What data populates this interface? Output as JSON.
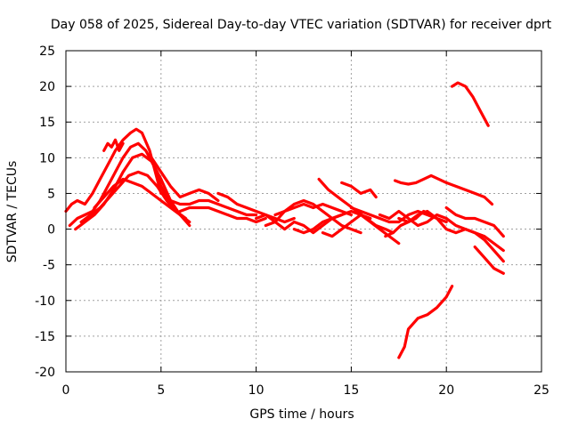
{
  "chart_data": {
    "type": "line",
    "title": "Day 058 of 2025, Sidereal Day-to-day VTEC variation (SDTVAR) for receiver dprt",
    "xlabel": "GPS time / hours",
    "ylabel": "SDTVAR / TECUs",
    "xlim": [
      0,
      25
    ],
    "ylim": [
      -20,
      25
    ],
    "xticks": [
      0,
      5,
      10,
      15,
      20,
      25
    ],
    "yticks": [
      -20,
      -15,
      -10,
      -5,
      0,
      5,
      10,
      15,
      20,
      25
    ],
    "grid": true,
    "color": "#ff0000",
    "series": [
      {
        "name": "s1",
        "x": [
          0,
          0.3,
          0.6,
          1.0,
          1.4,
          1.8,
          2.2,
          2.6,
          3.0,
          3.4,
          3.7,
          4.0,
          4.4,
          4.8,
          5.0
        ],
        "y": [
          2.5,
          3.5,
          4.0,
          3.5,
          5.0,
          7.0,
          9.0,
          11.0,
          12.5,
          13.5,
          14.0,
          13.5,
          11.0,
          7.0,
          5.0
        ]
      },
      {
        "name": "s2",
        "x": [
          0.2,
          0.6,
          1.0,
          1.4,
          1.8,
          2.2,
          2.6,
          3.0,
          3.4,
          3.8,
          4.2,
          4.6,
          5.0,
          5.4,
          6.0
        ],
        "y": [
          0.5,
          1.5,
          2.0,
          2.5,
          4.0,
          6.0,
          8.0,
          10.0,
          11.5,
          12.0,
          11.0,
          9.0,
          6.0,
          4.0,
          2.0
        ]
      },
      {
        "name": "s3",
        "x": [
          0.5,
          1.0,
          1.5,
          2.0,
          2.5,
          3.0,
          3.5,
          4.0,
          4.5,
          5.0,
          5.5,
          6.0,
          6.5
        ],
        "y": [
          0.0,
          1.0,
          2.0,
          3.5,
          5.5,
          8.0,
          10.0,
          10.5,
          9.5,
          7.0,
          4.0,
          2.0,
          0.5
        ]
      },
      {
        "name": "s4",
        "x": [
          0.8,
          1.3,
          1.8,
          2.3,
          2.8,
          3.3,
          3.8,
          4.3,
          4.8,
          5.3,
          5.8,
          6.3
        ],
        "y": [
          1.0,
          2.0,
          3.0,
          4.5,
          6.0,
          7.5,
          8.0,
          7.5,
          6.0,
          4.0,
          2.5,
          1.5
        ]
      },
      {
        "name": "s5",
        "x": [
          1.5,
          2.0,
          2.5,
          3.0,
          3.5,
          4.0,
          4.5,
          5.0,
          5.5,
          6.0,
          6.5
        ],
        "y": [
          3.0,
          4.5,
          6.0,
          7.0,
          6.5,
          6.0,
          5.0,
          4.0,
          3.0,
          2.0,
          1.0
        ]
      },
      {
        "name": "s6",
        "x": [
          2.0,
          2.2,
          2.4,
          2.6,
          2.8,
          3.0
        ],
        "y": [
          11.0,
          12.0,
          11.5,
          12.5,
          11.0,
          12.0
        ]
      },
      {
        "name": "s7",
        "x": [
          4.5,
          5.0,
          5.5,
          6.0,
          6.5,
          7.0,
          7.5,
          8.0
        ],
        "y": [
          10.0,
          8.0,
          6.0,
          4.5,
          5.0,
          5.5,
          5.0,
          4.0
        ]
      },
      {
        "name": "s8",
        "x": [
          5.5,
          6.0,
          6.5,
          7.0,
          7.5,
          8.0,
          8.5,
          9.0,
          9.5,
          10.0
        ],
        "y": [
          4.0,
          3.5,
          3.5,
          4.0,
          4.0,
          3.5,
          3.0,
          2.5,
          2.0,
          2.0
        ]
      },
      {
        "name": "s9",
        "x": [
          6.0,
          6.5,
          7.0,
          7.5,
          8.0,
          8.5,
          9.0,
          9.5,
          10.0,
          10.5
        ],
        "y": [
          2.5,
          3.0,
          3.0,
          3.0,
          2.5,
          2.0,
          1.5,
          1.5,
          1.0,
          1.5
        ]
      },
      {
        "name": "s10",
        "x": [
          8.0,
          8.5,
          9.0,
          9.5,
          10.0,
          10.5,
          11.0,
          11.5,
          12.0
        ],
        "y": [
          5.0,
          4.5,
          3.5,
          3.0,
          2.5,
          2.0,
          1.5,
          1.0,
          1.5
        ]
      },
      {
        "name": "s11",
        "x": [
          10.0,
          10.5,
          11.0,
          11.5,
          12.0,
          12.5,
          13.0,
          13.5,
          14.0,
          14.5,
          15.0
        ],
        "y": [
          1.5,
          2.0,
          1.0,
          2.5,
          3.0,
          3.5,
          3.0,
          3.5,
          3.0,
          2.5,
          2.0
        ]
      },
      {
        "name": "s12",
        "x": [
          10.5,
          11.0,
          11.5,
          12.0,
          12.5,
          13.0,
          13.5,
          14.0,
          14.5
        ],
        "y": [
          0.5,
          1.0,
          0.0,
          1.0,
          0.5,
          -0.5,
          0.5,
          1.5,
          2.0
        ]
      },
      {
        "name": "s13",
        "x": [
          11.0,
          11.5,
          12.0,
          12.5,
          13.0,
          13.5,
          14.0,
          14.5,
          15.0,
          15.5
        ],
        "y": [
          2.0,
          2.5,
          3.5,
          4.0,
          3.5,
          2.5,
          1.5,
          0.5,
          0.0,
          -0.5
        ]
      },
      {
        "name": "s14",
        "x": [
          12.0,
          12.5,
          13.0,
          13.5,
          14.0,
          14.5,
          15.0,
          15.5,
          16.0
        ],
        "y": [
          0.0,
          -0.5,
          0.0,
          1.0,
          1.5,
          2.0,
          2.5,
          2.0,
          1.5
        ]
      },
      {
        "name": "s15",
        "x": [
          13.5,
          14.0,
          14.5,
          15.0,
          15.5,
          16.0,
          16.5,
          17.0,
          17.5
        ],
        "y": [
          -0.5,
          -1.0,
          0.0,
          1.0,
          2.0,
          1.0,
          0.0,
          -1.0,
          -2.0
        ]
      },
      {
        "name": "s16",
        "x": [
          13.3,
          13.8,
          14.3,
          14.8,
          15.3,
          15.8,
          16.3,
          16.8,
          17.2
        ],
        "y": [
          7.0,
          5.5,
          4.5,
          3.5,
          2.5,
          1.5,
          0.5,
          0.0,
          -0.5
        ]
      },
      {
        "name": "s17",
        "x": [
          14.5,
          15.0,
          15.5,
          16.0,
          16.3
        ],
        "y": [
          6.5,
          6.0,
          5.0,
          5.5,
          4.5
        ]
      },
      {
        "name": "s18",
        "x": [
          15.0,
          15.5,
          16.0,
          16.5,
          17.0,
          17.5,
          18.0,
          18.5,
          19.0,
          19.5,
          20.0
        ],
        "y": [
          3.0,
          2.5,
          2.0,
          1.5,
          1.0,
          1.0,
          2.0,
          2.5,
          2.0,
          1.5,
          1.0
        ]
      },
      {
        "name": "s19",
        "x": [
          16.5,
          17.0,
          17.5,
          18.0,
          18.5,
          19.0,
          19.5,
          20.0
        ],
        "y": [
          2.0,
          1.5,
          2.5,
          1.5,
          0.5,
          1.0,
          2.0,
          1.5
        ]
      },
      {
        "name": "s20",
        "x": [
          16.8,
          17.2,
          17.6,
          18.0,
          18.4,
          18.8,
          19.2
        ],
        "y": [
          -1.0,
          -0.5,
          0.5,
          1.0,
          1.5,
          2.5,
          2.0
        ]
      },
      {
        "name": "s21",
        "x": [
          17.3,
          17.6,
          18.0,
          18.4,
          18.8,
          19.2,
          19.6,
          20.0,
          20.5,
          21.0,
          21.5,
          22.0,
          22.4
        ],
        "y": [
          6.8,
          6.5,
          6.3,
          6.5,
          7.0,
          7.5,
          7.0,
          6.5,
          6.0,
          5.5,
          5.0,
          4.5,
          3.5
        ]
      },
      {
        "name": "s22",
        "x": [
          17.5,
          18.0,
          18.5,
          19.0,
          19.5,
          20.0,
          20.5,
          21.0,
          21.5,
          22.0,
          22.5,
          23.0
        ],
        "y": [
          1.5,
          1.0,
          2.0,
          2.5,
          1.5,
          0.0,
          -0.5,
          0.0,
          -0.5,
          -1.0,
          -2.0,
          -3.0
        ]
      },
      {
        "name": "s23",
        "x": [
          20.0,
          20.5,
          21.0,
          21.5,
          22.0,
          22.5,
          23.0
        ],
        "y": [
          3.0,
          2.0,
          1.5,
          1.5,
          1.0,
          0.5,
          -1.0
        ]
      },
      {
        "name": "s24",
        "x": [
          20.0,
          20.5,
          21.0,
          21.5,
          22.0,
          22.5,
          23.0
        ],
        "y": [
          1.5,
          0.5,
          0.0,
          -0.5,
          -1.5,
          -3.0,
          -4.5
        ]
      },
      {
        "name": "s25",
        "x": [
          21.5,
          22.0,
          22.5,
          23.0
        ],
        "y": [
          -2.5,
          -4.0,
          -5.5,
          -6.2
        ]
      },
      {
        "name": "s26",
        "x": [
          20.3,
          20.6,
          21.0,
          21.4,
          21.8,
          22.2
        ],
        "y": [
          20.0,
          20.5,
          20.0,
          18.5,
          16.5,
          14.5
        ]
      },
      {
        "name": "s27",
        "x": [
          17.5,
          17.8,
          18.0,
          18.5,
          19.0,
          19.5,
          20.0,
          20.3
        ],
        "y": [
          -18.0,
          -16.5,
          -14.0,
          -12.5,
          -12.0,
          -11.0,
          -9.5,
          -8.0
        ]
      }
    ]
  }
}
